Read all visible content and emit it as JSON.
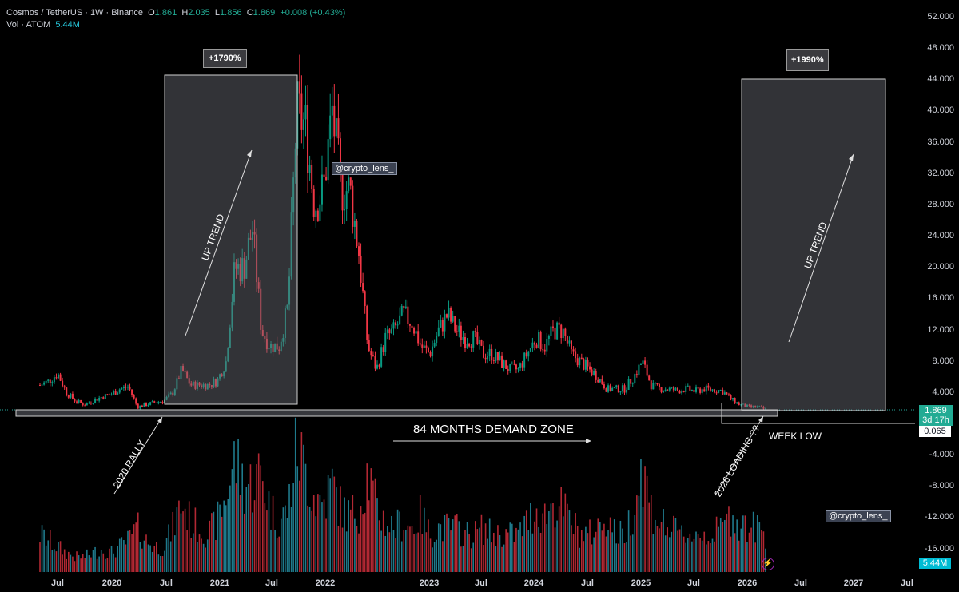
{
  "header": {
    "symbol": "Cosmos / TetherUS · 1W · Binance",
    "o_label": "O",
    "o": "1.861",
    "h_label": "H",
    "h": "2.035",
    "l_label": "L",
    "l": "1.856",
    "c_label": "C",
    "c": "1.869",
    "change": "+0.008 (+0.43%)",
    "vol_label": "Vol · ATOM",
    "vol": "5.44M"
  },
  "price_axis": [
    "52.000",
    "48.000",
    "44.000",
    "40.000",
    "36.000",
    "32.000",
    "28.000",
    "24.000",
    "20.000",
    "16.000",
    "12.000",
    "8.000",
    "4.000",
    "-4.000",
    "-8.000",
    "-12.000",
    "-16.000"
  ],
  "time_axis": [
    "Jul",
    "2020",
    "Jul",
    "2021",
    "Jul",
    "2022",
    "2023",
    "Jul",
    "2024",
    "Jul",
    "2025",
    "Jul",
    "2026",
    "Jul",
    "2027",
    "Jul"
  ],
  "badges": {
    "last_price": "1.869",
    "countdown": "3d 17h",
    "week_low": "0.065",
    "volume": "5.44M"
  },
  "annotations": {
    "gain1": "+1790%",
    "gain2": "+1990%",
    "uptrend1": "UP TREND",
    "uptrend2": "UP TREND",
    "demand_zone": "84 MONTHS DEMAND ZONE",
    "rally": "2020 RALLY",
    "loading": "2026 LOADING ??",
    "week_low": "WEEK LOW",
    "watermark1": "@crypto_lens_",
    "watermark2": "@crypto_lens_"
  },
  "colors": {
    "up": "#089981",
    "down": "#f23645",
    "volume_up": "#1f7a8c",
    "volume_down": "#b22833",
    "box": "#4a4a52",
    "accent": "#00bcd4"
  },
  "chart_data": {
    "type": "candlestick",
    "interval": "1W",
    "ylim": [
      -18,
      54
    ],
    "y_scale": "linear",
    "grid": false,
    "start_month": "2019-04",
    "monthly_close_approx": [
      5,
      5.5,
      6.5,
      4,
      3,
      2.5,
      3,
      3.5,
      3.8,
      4.5,
      4.8,
      2.2,
      2.5,
      2.8,
      3.0,
      4,
      7,
      5,
      5,
      5,
      5.5,
      8,
      20,
      20,
      25,
      12,
      10,
      10,
      15,
      40,
      38,
      28,
      30,
      40,
      30,
      30,
      22,
      10,
      7,
      11,
      12,
      14,
      13,
      10,
      9,
      12,
      14,
      12,
      11,
      11,
      9,
      9,
      8,
      7,
      7,
      9,
      11,
      10,
      12,
      12,
      9,
      8,
      7,
      6,
      4.5,
      4.5,
      4.5,
      6,
      8,
      5,
      4.5,
      4.5,
      4.3,
      4.5,
      4.2,
      4.5,
      4.4,
      4.3,
      3.2,
      2.5,
      2.2,
      2.2,
      1.87
    ],
    "monthly_volume_relative": [
      0.3,
      0.25,
      0.2,
      0.15,
      0.12,
      0.12,
      0.15,
      0.18,
      0.15,
      0.2,
      0.25,
      0.35,
      0.25,
      0.2,
      0.2,
      0.35,
      0.55,
      0.4,
      0.35,
      0.3,
      0.4,
      0.6,
      0.9,
      0.7,
      0.7,
      0.8,
      0.5,
      0.4,
      0.5,
      1.0,
      0.8,
      0.6,
      0.55,
      0.7,
      0.5,
      0.45,
      0.5,
      0.8,
      0.5,
      0.4,
      0.35,
      0.4,
      0.35,
      0.45,
      0.3,
      0.35,
      0.35,
      0.35,
      0.3,
      0.3,
      0.35,
      0.3,
      0.3,
      0.3,
      0.3,
      0.4,
      0.5,
      0.45,
      0.55,
      0.5,
      0.4,
      0.3,
      0.3,
      0.35,
      0.45,
      0.3,
      0.3,
      0.5,
      0.85,
      0.5,
      0.4,
      0.35,
      0.3,
      0.3,
      0.3,
      0.3,
      0.3,
      0.35,
      0.45,
      0.4,
      0.35,
      0.35,
      0.3
    ]
  }
}
